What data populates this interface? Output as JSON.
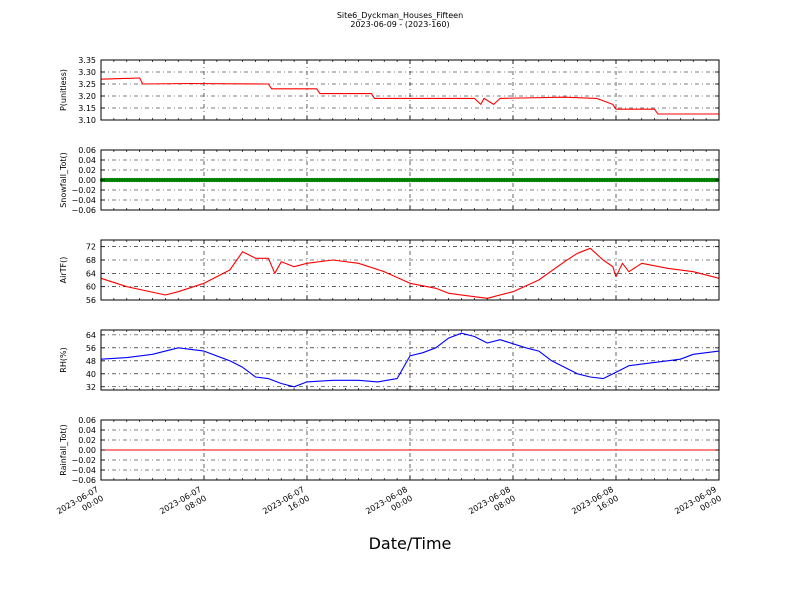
{
  "figure": {
    "title": "Site6_Dyckman_Houses_Fifteen",
    "subtitle": "2023-06-09 - (2023-160)",
    "xlabel": "Date/Time"
  },
  "chart_data": [
    {
      "type": "line",
      "ylabel": "P(unitless)",
      "color": "#ff0000",
      "ylim": [
        3.1,
        3.35
      ],
      "yticks": [
        "3.10",
        "3.15",
        "3.20",
        "3.25",
        "3.30",
        "3.35"
      ],
      "x": [
        "2023-06-07 00:00",
        "2023-06-07 03:00",
        "2023-06-07 03:15",
        "2023-06-07 07:00",
        "2023-06-07 13:00",
        "2023-06-07 13:15",
        "2023-06-07 16:45",
        "2023-06-07 17:00",
        "2023-06-07 21:00",
        "2023-06-07 21:15",
        "2023-06-08 05:00",
        "2023-06-08 05:30",
        "2023-06-08 05:45",
        "2023-06-08 06:30",
        "2023-06-08 07:00",
        "2023-06-08 12:00",
        "2023-06-08 14:30",
        "2023-06-08 15:45",
        "2023-06-08 16:00",
        "2023-06-08 19:00",
        "2023-06-08 19:15",
        "2023-06-09 00:00"
      ],
      "series": [
        {
          "values": [
            3.27,
            3.275,
            3.25,
            3.252,
            3.25,
            3.23,
            3.23,
            3.21,
            3.21,
            3.19,
            3.19,
            3.165,
            3.19,
            3.165,
            3.19,
            3.195,
            3.19,
            3.165,
            3.145,
            3.145,
            3.125,
            3.125
          ]
        }
      ]
    },
    {
      "type": "scatter",
      "ylabel": "Snowfall_Tot()",
      "color": "#008000",
      "ylim": [
        -0.06,
        0.06
      ],
      "yticks": [
        "−0.06",
        "−0.04",
        "−0.02",
        "0.00",
        "0.02",
        "0.04",
        "0.06"
      ],
      "x": [
        "2023-06-07 00:00",
        "2023-06-09 00:00"
      ],
      "series": [
        {
          "values": [
            0.0,
            0.0
          ]
        }
      ]
    },
    {
      "type": "line",
      "ylabel": "AirTF()",
      "color": "#ff0000",
      "ylim": [
        56,
        74
      ],
      "yticks": [
        "56",
        "60",
        "64",
        "68",
        "72"
      ],
      "x": [
        "2023-06-07 00:00",
        "2023-06-07 02:00",
        "2023-06-07 05:00",
        "2023-06-07 06:00",
        "2023-06-07 08:00",
        "2023-06-07 10:00",
        "2023-06-07 11:00",
        "2023-06-07 12:00",
        "2023-06-07 13:00",
        "2023-06-07 13:30",
        "2023-06-07 14:00",
        "2023-06-07 15:00",
        "2023-06-07 16:00",
        "2023-06-07 18:00",
        "2023-06-07 20:00",
        "2023-06-07 22:00",
        "2023-06-08 00:00",
        "2023-06-08 02:00",
        "2023-06-08 03:00",
        "2023-06-08 05:00",
        "2023-06-08 06:00",
        "2023-06-08 08:00",
        "2023-06-08 10:00",
        "2023-06-08 12:00",
        "2023-06-08 13:00",
        "2023-06-08 14:00",
        "2023-06-08 15:00",
        "2023-06-08 15:45",
        "2023-06-08 16:00",
        "2023-06-08 16:30",
        "2023-06-08 17:00",
        "2023-06-08 18:00",
        "2023-06-08 20:00",
        "2023-06-08 22:00",
        "2023-06-09 00:00"
      ],
      "series": [
        {
          "values": [
            62.5,
            60,
            57.5,
            58.5,
            61,
            65,
            70.5,
            68.5,
            68.5,
            64,
            67.5,
            66,
            67,
            68,
            67,
            64.5,
            61,
            59.5,
            58,
            57,
            56.5,
            58.5,
            62,
            67.5,
            70,
            71.5,
            68,
            66,
            63,
            67,
            64.5,
            67,
            65.5,
            64.5,
            62.5
          ]
        }
      ]
    },
    {
      "type": "line",
      "ylabel": "RH(%)",
      "color": "#0000ff",
      "ylim": [
        30,
        67
      ],
      "yticks": [
        "32",
        "40",
        "48",
        "56",
        "64"
      ],
      "x": [
        "2023-06-07 00:00",
        "2023-06-07 02:00",
        "2023-06-07 04:00",
        "2023-06-07 06:00",
        "2023-06-07 08:00",
        "2023-06-07 10:00",
        "2023-06-07 11:00",
        "2023-06-07 12:00",
        "2023-06-07 13:00",
        "2023-06-07 14:00",
        "2023-06-07 15:00",
        "2023-06-07 16:00",
        "2023-06-07 18:00",
        "2023-06-07 20:00",
        "2023-06-07 21:30",
        "2023-06-07 23:00",
        "2023-06-08 00:00",
        "2023-06-08 01:00",
        "2023-06-08 02:00",
        "2023-06-08 03:00",
        "2023-06-08 04:00",
        "2023-06-08 05:00",
        "2023-06-08 06:00",
        "2023-06-08 07:00",
        "2023-06-08 09:00",
        "2023-06-08 10:00",
        "2023-06-08 11:00",
        "2023-06-08 12:00",
        "2023-06-08 13:00",
        "2023-06-08 14:00",
        "2023-06-08 15:00",
        "2023-06-08 16:00",
        "2023-06-08 17:00",
        "2023-06-08 19:00",
        "2023-06-08 21:00",
        "2023-06-08 22:00",
        "2023-06-09 00:00"
      ],
      "series": [
        {
          "values": [
            49,
            50,
            52,
            56,
            54,
            48,
            44,
            38,
            37,
            34,
            32,
            35,
            36,
            36,
            35,
            37,
            51,
            53,
            56,
            62,
            65,
            63,
            59,
            61,
            56,
            54,
            48,
            44,
            40,
            38,
            37,
            41,
            45,
            47,
            49,
            52,
            54
          ]
        }
      ]
    },
    {
      "type": "line",
      "ylabel": "Rainfall_Tot()",
      "color": "#ff0000",
      "ylim": [
        -0.06,
        0.06
      ],
      "yticks": [
        "−0.06",
        "−0.04",
        "−0.02",
        "0.00",
        "0.02",
        "0.04",
        "0.06"
      ],
      "x": [
        "2023-06-07 00:00",
        "2023-06-09 00:00"
      ],
      "series": [
        {
          "values": [
            0.0,
            0.0
          ]
        }
      ]
    }
  ],
  "xaxis": {
    "ticks": [
      {
        "x": "2023-06-07 00:00",
        "label": "2023-06-07\n00:00"
      },
      {
        "x": "2023-06-07 08:00",
        "label": "2023-06-07\n08:00"
      },
      {
        "x": "2023-06-07 16:00",
        "label": "2023-06-07\n16:00"
      },
      {
        "x": "2023-06-08 00:00",
        "label": "2023-06-08\n00:00"
      },
      {
        "x": "2023-06-08 08:00",
        "label": "2023-06-08\n08:00"
      },
      {
        "x": "2023-06-08 16:00",
        "label": "2023-06-08\n16:00"
      },
      {
        "x": "2023-06-09 00:00",
        "label": "2023-06-09\n00:00"
      }
    ],
    "range": [
      "2023-06-07 00:00",
      "2023-06-09 00:00"
    ]
  }
}
